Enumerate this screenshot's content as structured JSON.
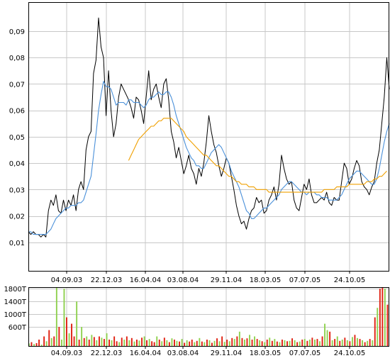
{
  "chart_data": [
    {
      "type": "line",
      "x_tick_labels": [
        "04.09.03",
        "22.12.03",
        "16.04.04",
        "03.08.04",
        "29.11.04",
        "18.03.05",
        "07.07.05",
        "24.10.05"
      ],
      "y_tick_labels": [
        "0,09",
        "0,08",
        "0,07",
        "0,06",
        "0,05",
        "0,04",
        "0,03",
        "0,02",
        "0,01"
      ],
      "y_ticks": [
        0.09,
        0.08,
        0.07,
        0.06,
        0.05,
        0.04,
        0.03,
        0.02,
        0.01
      ],
      "ylim": [
        -0.0008,
        0.101
      ],
      "x_range_weeks": [
        0,
        143
      ],
      "grid": true,
      "colors": {
        "price": "#000000",
        "ma_short": "#4a90d9",
        "ma_long": "#f0a000",
        "grid": "#c8c8c8",
        "axis": "#000000"
      },
      "series": [
        {
          "values": [
            0.014,
            0.013,
            0.014,
            0.013,
            0.013,
            0.012,
            0.013,
            0.012,
            0.022,
            0.026,
            0.024,
            0.028,
            0.022,
            0.021,
            0.026,
            0.022,
            0.026,
            0.024,
            0.028,
            0.022,
            0.03,
            0.033,
            0.03,
            0.045,
            0.05,
            0.052,
            0.074,
            0.079,
            0.095,
            0.084,
            0.08,
            0.058,
            0.075,
            0.06,
            0.05,
            0.055,
            0.065,
            0.07,
            0.068,
            0.066,
            0.064,
            0.061,
            0.057,
            0.065,
            0.064,
            0.06,
            0.055,
            0.065,
            0.075,
            0.064,
            0.068,
            0.07,
            0.065,
            0.061,
            0.07,
            0.072,
            0.064,
            0.052,
            0.048,
            0.042,
            0.046,
            0.041,
            0.036,
            0.039,
            0.043,
            0.038,
            0.036,
            0.032,
            0.038,
            0.035,
            0.04,
            0.048,
            0.058,
            0.052,
            0.047,
            0.044,
            0.039,
            0.035,
            0.038,
            0.042,
            0.04,
            0.035,
            0.03,
            0.024,
            0.02,
            0.017,
            0.018,
            0.015,
            0.019,
            0.022,
            0.023,
            0.027,
            0.025,
            0.026,
            0.021,
            0.022,
            0.026,
            0.028,
            0.031,
            0.026,
            0.032,
            0.043,
            0.038,
            0.034,
            0.032,
            0.033,
            0.026,
            0.023,
            0.022,
            0.027,
            0.032,
            0.03,
            0.034,
            0.028,
            0.025,
            0.025,
            0.026,
            0.027,
            0.026,
            0.029,
            0.025,
            0.024,
            0.027,
            0.026,
            0.026,
            0.033,
            0.04,
            0.038,
            0.032,
            0.034,
            0.038,
            0.041,
            0.039,
            0.033,
            0.031,
            0.03,
            0.028,
            0.031,
            0.033,
            0.04,
            0.045,
            0.055,
            0.065,
            0.08,
            0.068
          ]
        },
        {
          "values": [
            0.014,
            0.014,
            0.013,
            0.013,
            0.013,
            0.013,
            0.013,
            0.013,
            0.014,
            0.015,
            0.017,
            0.019,
            0.02,
            0.021,
            0.022,
            0.023,
            0.023,
            0.024,
            0.024,
            0.024,
            0.025,
            0.025,
            0.026,
            0.029,
            0.032,
            0.035,
            0.043,
            0.051,
            0.06,
            0.066,
            0.071,
            0.069,
            0.069,
            0.068,
            0.065,
            0.062,
            0.063,
            0.063,
            0.063,
            0.062,
            0.064,
            0.064,
            0.063,
            0.063,
            0.063,
            0.062,
            0.061,
            0.062,
            0.064,
            0.065,
            0.065,
            0.066,
            0.067,
            0.066,
            0.066,
            0.067,
            0.067,
            0.065,
            0.062,
            0.058,
            0.055,
            0.052,
            0.049,
            0.046,
            0.044,
            0.042,
            0.041,
            0.039,
            0.039,
            0.038,
            0.038,
            0.04,
            0.042,
            0.044,
            0.045,
            0.046,
            0.047,
            0.046,
            0.044,
            0.042,
            0.04,
            0.037,
            0.035,
            0.033,
            0.031,
            0.028,
            0.025,
            0.022,
            0.021,
            0.019,
            0.019,
            0.02,
            0.021,
            0.022,
            0.023,
            0.023,
            0.024,
            0.025,
            0.026,
            0.027,
            0.028,
            0.03,
            0.031,
            0.032,
            0.033,
            0.033,
            0.032,
            0.031,
            0.03,
            0.029,
            0.029,
            0.028,
            0.029,
            0.029,
            0.029,
            0.028,
            0.028,
            0.027,
            0.027,
            0.027,
            0.026,
            0.026,
            0.026,
            0.026,
            0.027,
            0.028,
            0.03,
            0.032,
            0.034,
            0.035,
            0.036,
            0.037,
            0.037,
            0.036,
            0.035,
            0.034,
            0.033,
            0.032,
            0.032,
            0.034,
            0.038,
            0.043,
            0.048,
            0.052,
            0.055
          ]
        },
        {
          "start_index": 40,
          "values": [
            0.041,
            0.043,
            0.045,
            0.047,
            0.049,
            0.05,
            0.051,
            0.052,
            0.053,
            0.054,
            0.054,
            0.055,
            0.056,
            0.056,
            0.057,
            0.057,
            0.057,
            0.057,
            0.056,
            0.055,
            0.054,
            0.053,
            0.052,
            0.05,
            0.049,
            0.048,
            0.047,
            0.046,
            0.045,
            0.044,
            0.043,
            0.043,
            0.042,
            0.041,
            0.04,
            0.039,
            0.039,
            0.038,
            0.037,
            0.036,
            0.035,
            0.035,
            0.034,
            0.033,
            0.033,
            0.032,
            0.032,
            0.032,
            0.031,
            0.031,
            0.031,
            0.03,
            0.03,
            0.03,
            0.03,
            0.03,
            0.029,
            0.029,
            0.029,
            0.029,
            0.029,
            0.029,
            0.029,
            0.029,
            0.029,
            0.029,
            0.029,
            0.029,
            0.029,
            0.029,
            0.029,
            0.029,
            0.029,
            0.029,
            0.029,
            0.029,
            0.029,
            0.029,
            0.03,
            0.03,
            0.03,
            0.03,
            0.03,
            0.031,
            0.031,
            0.031,
            0.031,
            0.031,
            0.032,
            0.032,
            0.032,
            0.032,
            0.032,
            0.032,
            0.032,
            0.033,
            0.033,
            0.033,
            0.034,
            0.034,
            0.035,
            0.035,
            0.036,
            0.037
          ]
        }
      ]
    },
    {
      "type": "bar",
      "y_tick_labels": [
        "1800T",
        "1400T",
        "1000T",
        "600T"
      ],
      "y_ticks": [
        1800,
        1400,
        1000,
        600
      ],
      "ylim": [
        0,
        1850
      ],
      "x_tick_labels": [
        "04.09.03",
        "22.12.03",
        "16.04.04",
        "03.08.04",
        "29.11.04",
        "18.03.05",
        "07.07.05",
        "24.10.05"
      ],
      "grid": true,
      "colors": {
        "up": "#8fd14f",
        "down": "#e02010",
        "mixed": "#d7a000"
      },
      "values": [
        80,
        120,
        60,
        90,
        200,
        40,
        300,
        150,
        500,
        250,
        300,
        1900,
        600,
        200,
        1800,
        900,
        400,
        700,
        300,
        1400,
        200,
        600,
        250,
        300,
        200,
        350,
        280,
        180,
        300,
        260,
        220,
        400,
        200,
        180,
        300,
        150,
        120,
        260,
        200,
        300,
        180,
        250,
        140,
        200,
        170,
        260,
        300,
        180,
        220,
        150,
        120,
        300,
        200,
        150,
        260,
        180,
        120,
        240,
        200,
        160,
        140,
        220,
        100,
        180,
        140,
        200,
        120,
        160,
        250,
        140,
        120,
        200,
        180,
        100,
        160,
        240,
        150,
        300,
        130,
        200,
        150,
        250,
        220,
        300,
        450,
        250,
        200,
        240,
        350,
        200,
        300,
        220,
        180,
        150,
        120,
        200,
        260,
        160,
        220,
        140,
        120,
        200,
        180,
        150,
        160,
        240,
        180,
        120,
        140,
        200,
        220,
        160,
        200,
        260,
        200,
        220,
        150,
        300,
        700,
        500,
        450,
        180,
        220,
        300,
        160,
        200,
        260,
        180,
        150,
        280,
        350,
        250,
        220,
        180,
        120,
        160,
        220,
        180,
        900,
        1200,
        1800,
        1850,
        1800,
        1300
      ],
      "colors_by_bar": [
        "g",
        "r",
        "g",
        "r",
        "r",
        "g",
        "r",
        "g",
        "r",
        "g",
        "r",
        "g",
        "r",
        "g",
        "g",
        "r",
        "g",
        "r",
        "r",
        "g",
        "r",
        "g",
        "r",
        "g",
        "r",
        "g",
        "r",
        "g",
        "r",
        "g",
        "r",
        "g",
        "r",
        "g",
        "r",
        "r",
        "g",
        "r",
        "g",
        "r",
        "g",
        "r",
        "g",
        "r",
        "g",
        "r",
        "g",
        "r",
        "g",
        "r",
        "r",
        "g",
        "r",
        "g",
        "r",
        "g",
        "r",
        "g",
        "r",
        "g",
        "r",
        "g",
        "r",
        "g",
        "r",
        "r",
        "g",
        "r",
        "g",
        "r",
        "g",
        "r",
        "g",
        "r",
        "g",
        "r",
        "g",
        "r",
        "g",
        "r",
        "g",
        "r",
        "g",
        "r",
        "g",
        "r",
        "g",
        "r",
        "g",
        "r",
        "g",
        "r",
        "g",
        "r",
        "g",
        "r",
        "g",
        "r",
        "g",
        "r",
        "g",
        "r",
        "g",
        "r",
        "g",
        "r",
        "g",
        "r",
        "g",
        "r",
        "g",
        "r",
        "g",
        "r",
        "g",
        "r",
        "g",
        "r",
        "g",
        "g",
        "r",
        "g",
        "r",
        "g",
        "r",
        "g",
        "r",
        "g",
        "r",
        "g",
        "r",
        "g",
        "r",
        "g",
        "r",
        "g",
        "r",
        "g",
        "r",
        "g",
        "r",
        "r",
        "g",
        "r"
      ]
    }
  ]
}
